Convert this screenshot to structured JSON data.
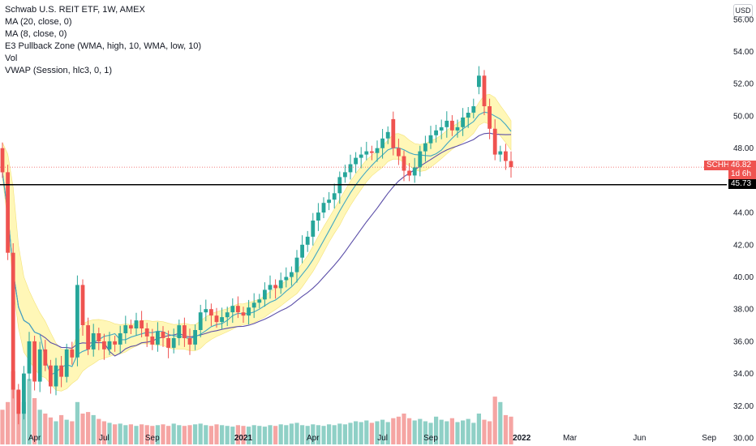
{
  "legend": {
    "title": "Schwab U.S. REIT ETF, 1W, AMEX",
    "ma20": "MA (20, close, 0)",
    "ma8": "MA (8, close, 0)",
    "e3": "E3 Pullback Zone (WMA, high, 10, WMA, low, 10)",
    "vol": "Vol",
    "vwap": "VWAP (Session, hlc3, 0, 1)"
  },
  "currency": "USD",
  "labels": {
    "ticker": "SCHH",
    "last_price": "46.82",
    "countdown": "1d 6h",
    "level": "45.73"
  },
  "colors": {
    "up": "#26a69a",
    "down": "#ef5350",
    "up_volume": "#8fd0c6",
    "down_volume": "#f5a5a3",
    "ma20": "#5b4ea8",
    "ma8": "#3fa7c4",
    "pullback_zone": "#fff7b0",
    "level": "#000000"
  },
  "chart_data": {
    "type": "candlestick",
    "symbol": "SCHH",
    "interval": "1W",
    "ylim": [
      29.6,
      57.2
    ],
    "y_ticks": [
      "56.00",
      "54.00",
      "52.00",
      "50.00",
      "48.00",
      "46.00",
      "44.00",
      "42.00",
      "40.00",
      "38.00",
      "36.00",
      "34.00",
      "32.00",
      "30.00"
    ],
    "x_ticks": [
      {
        "label": "Apr",
        "week": 6,
        "bold": false
      },
      {
        "label": "Jul",
        "week": 19,
        "bold": false
      },
      {
        "label": "Sep",
        "week": 28,
        "bold": false
      },
      {
        "label": "2021",
        "week": 45,
        "bold": true
      },
      {
        "label": "Apr",
        "week": 58,
        "bold": false
      },
      {
        "label": "Jul",
        "week": 71,
        "bold": false
      },
      {
        "label": "Sep",
        "week": 80,
        "bold": false
      },
      {
        "label": "2022",
        "week": 97,
        "bold": true
      },
      {
        "label": "Mar",
        "week": 106,
        "bold": false
      },
      {
        "label": "Jun",
        "week": 119,
        "bold": false
      },
      {
        "label": "Sep",
        "week": 132,
        "bold": false
      }
    ],
    "horizontal_level": 45.73,
    "last_price": 46.82,
    "closes": [
      46.5,
      41.5,
      33.0,
      31.5,
      34.0,
      36.0,
      33.5,
      35.5,
      34.5,
      33.2,
      34.5,
      33.8,
      35.5,
      35.0,
      39.5,
      37.0,
      35.5,
      36.5,
      36.0,
      35.5,
      36.0,
      35.8,
      36.5,
      37.0,
      36.8,
      37.3,
      36.8,
      36.3,
      35.8,
      36.6,
      36.2,
      35.6,
      36.2,
      37.0,
      36.2,
      35.8,
      36.7,
      37.8,
      38.0,
      37.6,
      37.2,
      37.5,
      37.8,
      38.2,
      37.8,
      37.6,
      38.1,
      38.4,
      38.6,
      39.2,
      39.5,
      39.3,
      39.8,
      40.0,
      40.3,
      41.2,
      42.0,
      42.5,
      43.5,
      44.0,
      44.6,
      44.8,
      45.2,
      46.2,
      46.5,
      47.0,
      47.4,
      47.6,
      47.8,
      47.7,
      48.0,
      48.6,
      49.0,
      48.0,
      47.5,
      46.6,
      46.3,
      46.8,
      47.8,
      48.3,
      48.8,
      49.1,
      49.3,
      49.7,
      49.1,
      49.3,
      49.9,
      50.2,
      50.6,
      52.5,
      50.6,
      49.2,
      47.6,
      47.8,
      47.2,
      46.82
    ],
    "opens": [
      48.0,
      46.5,
      41.5,
      33.0,
      31.5,
      34.0,
      36.0,
      33.5,
      35.5,
      34.5,
      33.2,
      34.5,
      33.8,
      35.5,
      35.0,
      39.5,
      37.0,
      35.5,
      36.5,
      36.0,
      35.5,
      36.0,
      35.8,
      36.5,
      37.0,
      36.8,
      37.3,
      36.8,
      36.3,
      35.8,
      36.6,
      36.2,
      35.6,
      36.2,
      37.0,
      36.2,
      35.8,
      36.7,
      37.8,
      38.0,
      37.6,
      37.2,
      37.5,
      37.8,
      38.2,
      37.8,
      37.6,
      38.1,
      38.4,
      38.6,
      39.2,
      39.5,
      39.3,
      39.8,
      40.0,
      40.3,
      41.2,
      42.0,
      42.5,
      43.5,
      44.0,
      44.6,
      44.8,
      45.2,
      46.2,
      46.5,
      47.0,
      47.4,
      47.6,
      47.8,
      47.7,
      48.0,
      48.6,
      49.8,
      48.0,
      47.5,
      46.6,
      46.3,
      46.8,
      47.8,
      48.3,
      48.8,
      49.1,
      49.3,
      49.7,
      49.1,
      49.3,
      49.9,
      50.2,
      51.8,
      52.5,
      50.6,
      49.2,
      47.6,
      47.8,
      47.2
    ],
    "volume_relative": [
      0.45,
      0.55,
      0.95,
      0.7,
      0.55,
      0.85,
      0.6,
      0.45,
      0.4,
      0.35,
      0.3,
      0.38,
      0.32,
      0.3,
      0.55,
      0.4,
      0.42,
      0.38,
      0.33,
      0.3,
      0.28,
      0.26,
      0.27,
      0.25,
      0.26,
      0.24,
      0.26,
      0.25,
      0.24,
      0.25,
      0.26,
      0.24,
      0.27,
      0.25,
      0.24,
      0.25,
      0.26,
      0.27,
      0.25,
      0.24,
      0.26,
      0.25,
      0.24,
      0.23,
      0.25,
      0.24,
      0.23,
      0.25,
      0.24,
      0.23,
      0.25,
      0.24,
      0.26,
      0.25,
      0.27,
      0.28,
      0.25,
      0.24,
      0.26,
      0.25,
      0.24,
      0.26,
      0.25,
      0.27,
      0.26,
      0.28,
      0.3,
      0.29,
      0.31,
      0.28,
      0.3,
      0.32,
      0.29,
      0.34,
      0.36,
      0.4,
      0.34,
      0.31,
      0.33,
      0.3,
      0.28,
      0.36,
      0.32,
      0.3,
      0.34,
      0.29,
      0.31,
      0.33,
      0.28,
      0.4,
      0.32,
      0.3,
      0.62,
      0.55,
      0.38,
      0.36
    ]
  }
}
